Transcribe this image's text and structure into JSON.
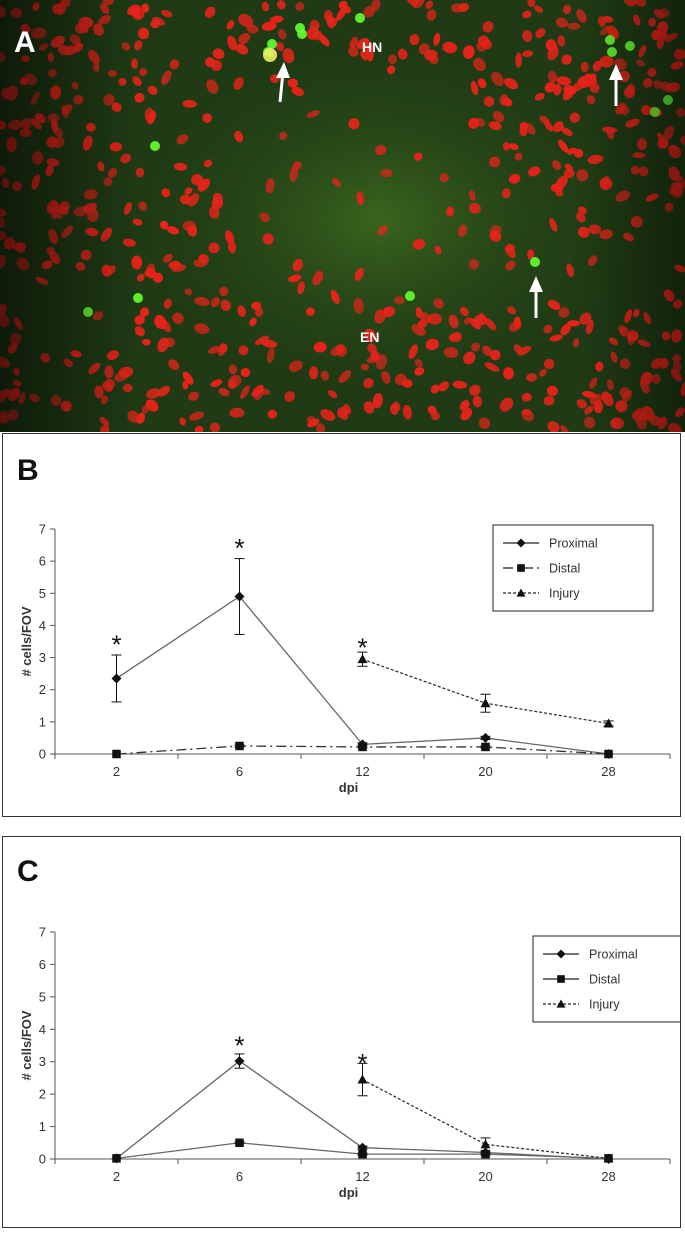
{
  "panel_a": {
    "letter": "A",
    "labels": [
      "HN",
      "EN"
    ],
    "colors": {
      "background": "#1f3a14",
      "nuclei": "#e8231a",
      "positive": "#66ff33",
      "arrow": "#ffffff"
    }
  },
  "chart_data": [
    {
      "panel": "B",
      "type": "line",
      "ylabel": "# cells/FOV",
      "xlabel": "dpi",
      "categories": [
        "2",
        "6",
        "12",
        "20",
        "28"
      ],
      "ylim": [
        0,
        7
      ],
      "yticks": [
        0,
        1,
        2,
        3,
        4,
        5,
        6,
        7
      ],
      "legend": "top-right",
      "series": [
        {
          "name": "Proximal",
          "marker": "diamond",
          "dash": "solid",
          "values": [
            2.35,
            4.9,
            0.3,
            0.5,
            0
          ],
          "errors": [
            0.73,
            1.18,
            0.05,
            0.05,
            0
          ]
        },
        {
          "name": "Distal",
          "marker": "square",
          "dash": "dashdot",
          "values": [
            0,
            0.25,
            0.22,
            0.22,
            0
          ],
          "errors": [
            0,
            0.03,
            0.03,
            0.03,
            0
          ]
        },
        {
          "name": "Injury",
          "marker": "triangle",
          "dash": "dotted",
          "values": [
            null,
            null,
            2.95,
            1.58,
            0.95
          ],
          "errors": [
            null,
            null,
            0.22,
            0.28,
            0.08
          ]
        }
      ],
      "annotations": [
        {
          "text": "*",
          "x": "2",
          "y": 3.5
        },
        {
          "text": "*",
          "x": "6",
          "y": 6.5
        },
        {
          "text": "*",
          "x": "12",
          "y": 3.4
        }
      ]
    },
    {
      "panel": "C",
      "type": "line",
      "ylabel": "# cells/FOV",
      "xlabel": "dpi",
      "categories": [
        "2",
        "6",
        "12",
        "20",
        "28"
      ],
      "ylim": [
        0,
        7
      ],
      "yticks": [
        0,
        1,
        2,
        3,
        4,
        5,
        6,
        7
      ],
      "legend": "top-right",
      "series": [
        {
          "name": "Proximal",
          "marker": "diamond",
          "dash": "solid",
          "values": [
            0.02,
            3.02,
            0.35,
            0.2,
            0
          ],
          "errors": [
            0,
            0.22,
            0.05,
            0.05,
            0
          ]
        },
        {
          "name": "Distal",
          "marker": "square",
          "dash": "solid",
          "values": [
            0.02,
            0.5,
            0.15,
            0.15,
            0.02
          ],
          "errors": [
            0,
            0.03,
            0.03,
            0.03,
            0
          ]
        },
        {
          "name": "Injury",
          "marker": "triangle",
          "dash": "dotted",
          "values": [
            null,
            null,
            2.45,
            0.45,
            0.02
          ],
          "errors": [
            null,
            null,
            0.5,
            0.2,
            0
          ]
        }
      ],
      "annotations": [
        {
          "text": "*",
          "x": "6",
          "y": 3.6
        },
        {
          "text": "*",
          "x": "12",
          "y": 3.05
        }
      ]
    }
  ]
}
